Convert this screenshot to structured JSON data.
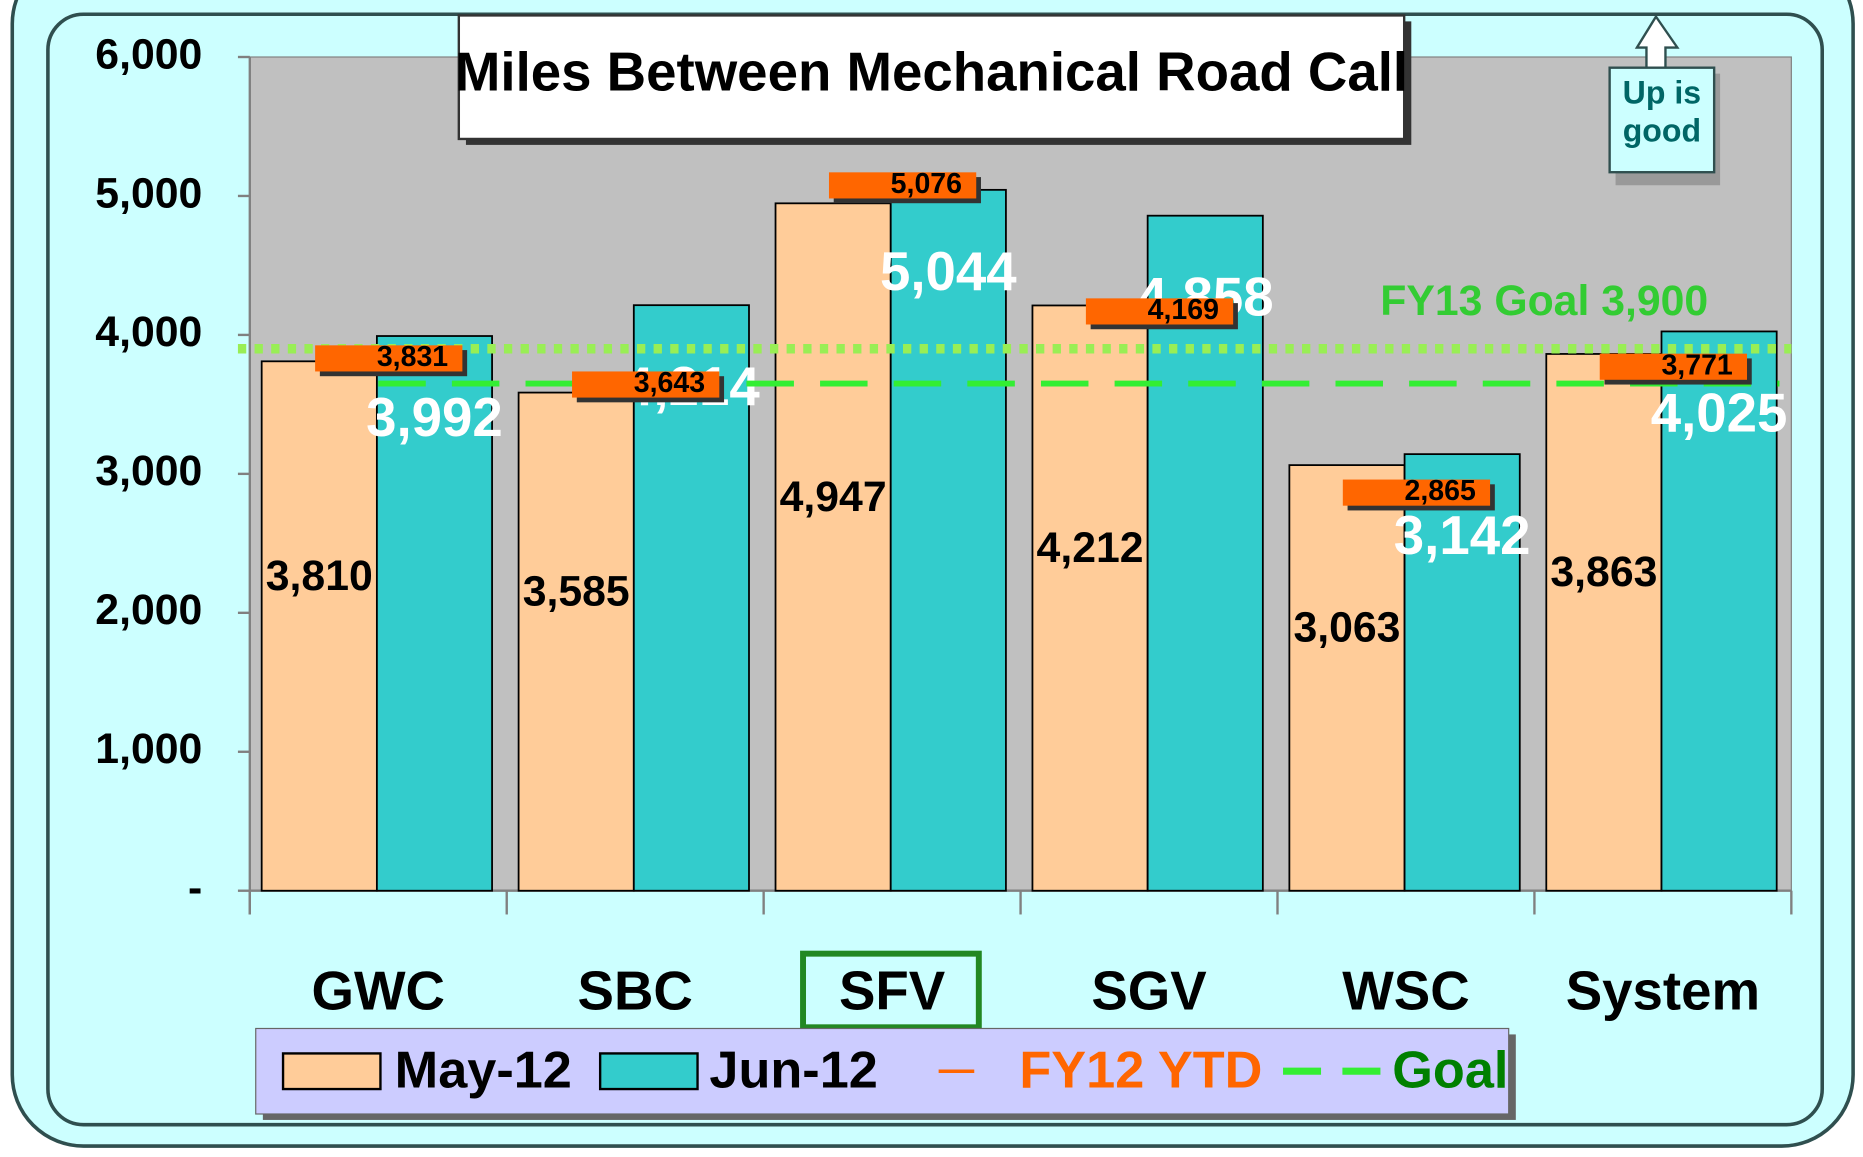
{
  "chart_data": {
    "type": "bar",
    "title": "Miles Between Mechanical Road Call",
    "categories": [
      "GWC",
      "SBC",
      "SFV",
      "SGV",
      "WSC",
      "System"
    ],
    "series": [
      {
        "name": "May-12",
        "color": "#ffcc99",
        "values": [
          3810,
          3585,
          4947,
          4212,
          3063,
          3863
        ],
        "value_labels": [
          "3,810",
          "3,585",
          "4,947",
          "4,212",
          "3,063",
          "3,863"
        ]
      },
      {
        "name": "Jun-12",
        "color": "#33cccc",
        "values": [
          3992,
          4214,
          5044,
          4858,
          3142,
          4025
        ],
        "value_labels": [
          "3,992",
          "4,214",
          "5,044",
          "4,858",
          "3,142",
          "4,025"
        ]
      },
      {
        "name": "FY12 YTD",
        "color": "#ff6600",
        "values": [
          3831,
          3643,
          5076,
          4169,
          2865,
          3771
        ],
        "value_labels": [
          "3,831",
          "3,643",
          "5,076",
          "4,169",
          "2,865",
          "3,771"
        ]
      }
    ],
    "goal": {
      "name": "Goal",
      "color": "#33ee33",
      "value": 3650
    },
    "fy13_goal": {
      "label": "FY13 Goal 3,900",
      "value": 3900,
      "color": "#99ee55"
    },
    "annotation": "Up is good",
    "ylim": [
      0,
      6000
    ],
    "yticks": [
      {
        "value": 0,
        "label": "-"
      },
      {
        "value": 1000,
        "label": "1,000"
      },
      {
        "value": 2000,
        "label": "2,000"
      },
      {
        "value": 3000,
        "label": "3,000"
      },
      {
        "value": 4000,
        "label": "4,000"
      },
      {
        "value": 5000,
        "label": "5,000"
      },
      {
        "value": 6000,
        "label": "6,000"
      }
    ],
    "highlight_category": 2
  }
}
